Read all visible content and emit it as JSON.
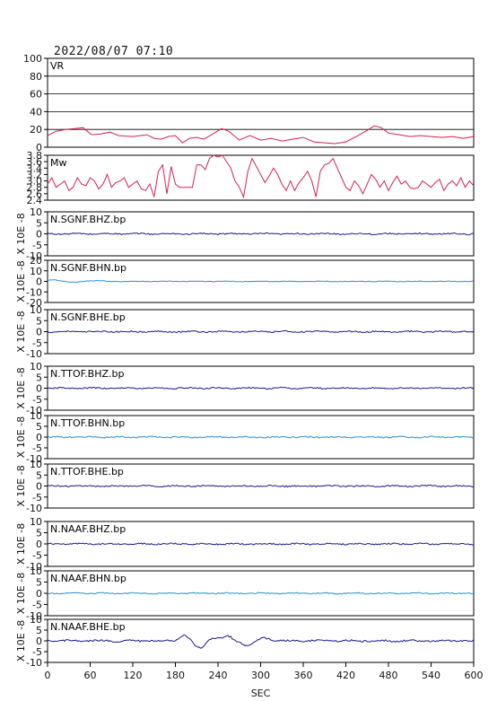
{
  "title": "2022/08/07  07:10",
  "chart_data": [
    {
      "type": "line",
      "label": "VR",
      "ylim": [
        0,
        100
      ],
      "yticks": [
        0,
        20,
        40,
        60,
        80,
        100
      ],
      "grid": true,
      "color": "#d4214f",
      "x": [
        0,
        12,
        25,
        38,
        50,
        62,
        75,
        88,
        100,
        120,
        140,
        150,
        160,
        170,
        180,
        190,
        200,
        210,
        220,
        235,
        245,
        255,
        270,
        285,
        300,
        315,
        330,
        345,
        360,
        375,
        390,
        405,
        420,
        435,
        450,
        460,
        470,
        480,
        495,
        510,
        525,
        540,
        555,
        570,
        585,
        600
      ],
      "y": [
        13,
        18,
        20,
        21,
        22,
        14,
        15,
        17,
        13,
        12,
        14,
        10,
        9,
        12,
        13,
        5,
        10,
        11,
        9,
        16,
        21,
        18,
        8,
        13,
        8,
        10,
        7,
        9,
        11,
        6,
        5,
        4,
        6,
        12,
        19,
        24,
        22,
        16,
        14,
        12,
        13,
        12,
        11,
        12,
        10,
        12
      ]
    },
    {
      "type": "line",
      "label": "Mw",
      "ylim": [
        2.4,
        3.8
      ],
      "yticks": [
        2.4,
        2.6,
        2.8,
        3.0,
        3.2,
        3.4,
        3.6,
        3.8
      ],
      "ytick_labels": [
        "2.4",
        "2.6",
        "2.8",
        "3.0",
        "3.2",
        "3.4",
        "3.6",
        "3.8"
      ],
      "grid": false,
      "color": "#d4214f",
      "x": [
        0,
        6,
        12,
        18,
        24,
        30,
        36,
        42,
        48,
        54,
        60,
        66,
        72,
        78,
        84,
        90,
        96,
        102,
        108,
        114,
        120,
        126,
        132,
        138,
        144,
        150,
        156,
        162,
        168,
        174,
        180,
        186,
        192,
        198,
        204,
        210,
        216,
        222,
        228,
        234,
        240,
        246,
        252,
        258,
        264,
        270,
        276,
        282,
        288,
        294,
        300,
        306,
        312,
        318,
        324,
        330,
        336,
        342,
        348,
        354,
        360,
        366,
        372,
        378,
        384,
        390,
        396,
        402,
        408,
        414,
        420,
        426,
        432,
        438,
        444,
        450,
        456,
        462,
        468,
        474,
        480,
        486,
        492,
        498,
        504,
        510,
        516,
        522,
        528,
        534,
        540,
        546,
        552,
        558,
        564,
        570,
        576,
        582,
        588,
        594,
        600
      ],
      "y": [
        2.9,
        3.1,
        2.8,
        2.9,
        3.0,
        2.7,
        2.8,
        3.1,
        2.9,
        2.85,
        3.1,
        3.0,
        2.75,
        2.9,
        3.2,
        2.8,
        2.95,
        3.0,
        3.1,
        2.8,
        2.9,
        3.0,
        2.75,
        2.7,
        2.9,
        2.5,
        3.3,
        3.5,
        2.6,
        3.45,
        2.9,
        2.8,
        2.8,
        2.8,
        2.8,
        3.5,
        3.5,
        3.35,
        3.7,
        3.8,
        3.75,
        3.8,
        3.6,
        3.4,
        3.0,
        2.8,
        2.5,
        3.3,
        3.7,
        3.45,
        3.2,
        2.95,
        3.15,
        3.4,
        3.2,
        2.9,
        2.7,
        3.0,
        2.7,
        2.95,
        3.1,
        3.3,
        3.0,
        2.5,
        3.3,
        3.5,
        3.55,
        3.7,
        3.4,
        3.1,
        2.8,
        2.7,
        3.0,
        2.85,
        2.6,
        2.9,
        3.2,
        3.05,
        2.8,
        3.0,
        2.7,
        2.95,
        3.15,
        2.9,
        3.0,
        2.8,
        2.75,
        2.8,
        3.0,
        2.9,
        2.8,
        2.95,
        3.05,
        2.7,
        2.9,
        3.0,
        2.85,
        3.1,
        2.8,
        3.0,
        2.85
      ]
    },
    {
      "type": "line",
      "label": "N.SGNF.BHZ.bp",
      "ylim": [
        -10,
        10
      ],
      "yticks": [
        -10,
        -5,
        0,
        5,
        10
      ],
      "color": "#1a1a8c",
      "amplitude": 0.3,
      "bumps": []
    },
    {
      "type": "line",
      "label": "N.SGNF.BHN.bp",
      "ylim": [
        -20,
        20
      ],
      "yticks": [
        -20,
        -10,
        0,
        10,
        20
      ],
      "color": "#2a8fd4",
      "amplitude": 0.3,
      "bumps": [
        {
          "t": 8,
          "a": 1.5,
          "w": 12
        },
        {
          "t": 35,
          "a": -1.0,
          "w": 12
        },
        {
          "t": 65,
          "a": 0.8,
          "w": 12
        }
      ]
    },
    {
      "type": "line",
      "label": "N.SGNF.BHE.bp",
      "ylim": [
        -10,
        10
      ],
      "yticks": [
        -10,
        -5,
        0,
        5,
        10
      ],
      "color": "#1a1a8c",
      "amplitude": 0.3,
      "bumps": []
    },
    {
      "type": "line",
      "label": "N.TTOF.BHZ.bp",
      "ylim": [
        -10,
        10
      ],
      "yticks": [
        -10,
        -5,
        0,
        5,
        10
      ],
      "color": "#1a1a8c",
      "amplitude": 0.3,
      "bumps": []
    },
    {
      "type": "line",
      "label": "N.TTOF.BHN.bp",
      "ylim": [
        -10,
        10
      ],
      "yticks": [
        -10,
        -5,
        0,
        5,
        10
      ],
      "color": "#2a8fd4",
      "amplitude": 0.3,
      "bumps": []
    },
    {
      "type": "line",
      "label": "N.TTOF.BHE.bp",
      "ylim": [
        -10,
        10
      ],
      "yticks": [
        -10,
        -5,
        0,
        5,
        10
      ],
      "color": "#1a1a8c",
      "amplitude": 0.3,
      "bumps": []
    },
    {
      "type": "line",
      "label": "N.NAAF.BHZ.bp",
      "ylim": [
        -10,
        10
      ],
      "yticks": [
        -10,
        -5,
        0,
        5,
        10
      ],
      "color": "#1a1a8c",
      "amplitude": 0.3,
      "bumps": []
    },
    {
      "type": "line",
      "label": "N.NAAF.BHN.bp",
      "ylim": [
        -10,
        10
      ],
      "yticks": [
        -10,
        -5,
        0,
        5,
        10
      ],
      "color": "#2a8fd4",
      "amplitude": 0.25,
      "bumps": []
    },
    {
      "type": "line",
      "label": "N.NAAF.BHE.bp",
      "ylim": [
        -10,
        10
      ],
      "yticks": [
        -10,
        -5,
        0,
        5,
        10
      ],
      "color": "#1a1a8c",
      "amplitude": 0.4,
      "bumps": [
        {
          "t": 193,
          "a": 2.5,
          "w": 10
        },
        {
          "t": 213,
          "a": -3.5,
          "w": 10
        },
        {
          "t": 235,
          "a": 1.5,
          "w": 10
        },
        {
          "t": 255,
          "a": 2.0,
          "w": 8
        },
        {
          "t": 282,
          "a": -2.5,
          "w": 10
        },
        {
          "t": 305,
          "a": 1.5,
          "w": 10
        }
      ]
    }
  ],
  "axis_ylabel": "X 10E -8",
  "xaxis": {
    "label": "SEC",
    "ticks": [
      0,
      60,
      120,
      180,
      240,
      300,
      360,
      420,
      480,
      540,
      600
    ],
    "xlim": [
      0,
      600
    ]
  }
}
